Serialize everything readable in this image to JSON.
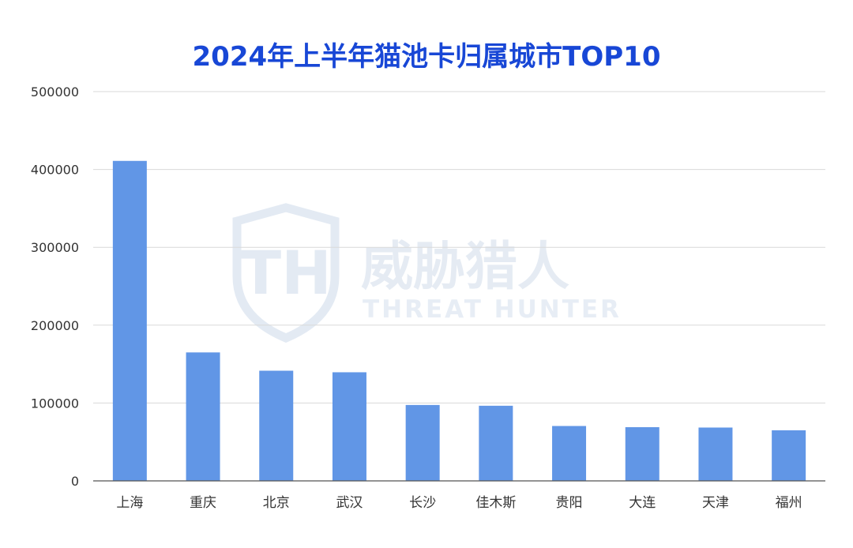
{
  "chart_data": {
    "type": "bar",
    "title": "2024年上半年猫池卡归属城市TOP10",
    "categories": [
      "上海",
      "重庆",
      "北京",
      "武汉",
      "长沙",
      "佳木斯",
      "贵阳",
      "大连",
      "天津",
      "福州"
    ],
    "values": [
      411000,
      165000,
      141500,
      139500,
      97500,
      96500,
      70500,
      69000,
      68500,
      65000
    ],
    "ylim": [
      0,
      500000
    ],
    "yticks": [
      0,
      100000,
      200000,
      300000,
      400000,
      500000
    ],
    "xlabel": "",
    "ylabel": "",
    "grid": true,
    "legend": "none",
    "bar_color": "#6196e6",
    "title_color": "#1847d6"
  },
  "watermark": {
    "brand_cn": "威胁猎人",
    "brand_en": "THREAT HUNTER",
    "logo_letters": "TH"
  }
}
